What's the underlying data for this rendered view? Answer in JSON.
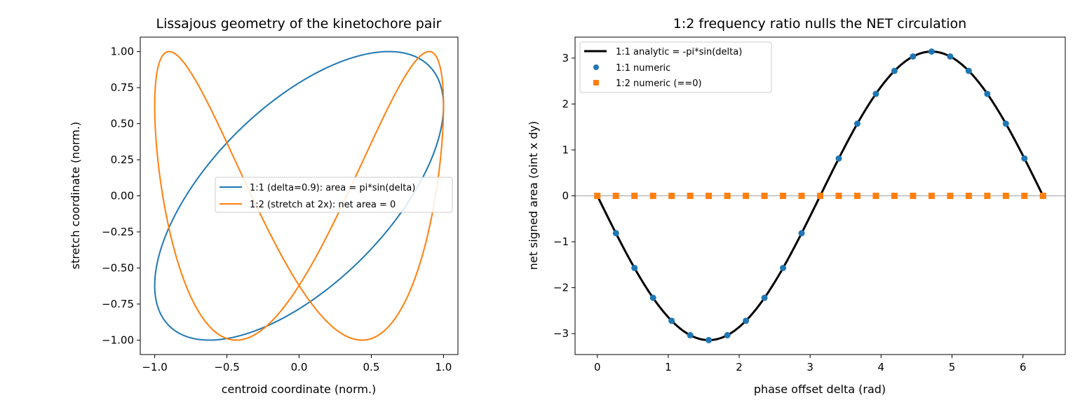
{
  "chart_data": [
    {
      "type": "line",
      "title": "Lissajous geometry of the kinetochore pair",
      "xlabel": "centroid coordinate (norm.)",
      "ylabel": "stretch coordinate (norm.)",
      "xlim": [
        -1.1,
        1.1
      ],
      "ylim": [
        -1.1,
        1.1
      ],
      "xticks": [
        -1.0,
        -0.5,
        0.0,
        0.5,
        1.0
      ],
      "xtick_labels": [
        "−1.0",
        "−0.5",
        "0.0",
        "0.5",
        "1.0"
      ],
      "yticks": [
        1.0,
        0.75,
        0.5,
        0.25,
        0.0,
        -0.25,
        -0.5,
        -0.75,
        -1.0
      ],
      "ytick_labels": [
        "1.00",
        "0.75",
        "0.50",
        "0.25",
        "0.00",
        "−0.25",
        "−0.50",
        "−0.75",
        "−1.00"
      ],
      "grid": false,
      "legend_position": "center-right",
      "series": [
        {
          "name": "1:1 (delta=0.9): area = pi*sin(delta)",
          "color": "#1f77b4",
          "x_expr": "cos(t)",
          "y_expr": "cos(t - 0.9)",
          "t_range": [
            0,
            6.2832
          ]
        },
        {
          "name": "1:2 (stretch at 2x): net area = 0",
          "color": "#ff7f0e",
          "x_expr": "cos(t)",
          "y_expr": "cos(2t - 0.9)",
          "t_range": [
            0,
            6.2832
          ]
        }
      ]
    },
    {
      "type": "line",
      "title": "1:2 frequency ratio nulls the NET circulation",
      "xlabel": "phase offset delta (rad)",
      "ylabel": "net signed area (oint x dy)",
      "xlim": [
        -0.314,
        6.597
      ],
      "ylim": [
        -3.456,
        3.456
      ],
      "xticks": [
        0,
        1,
        2,
        3,
        4,
        5,
        6
      ],
      "xtick_labels": [
        "0",
        "1",
        "2",
        "3",
        "4",
        "5",
        "6"
      ],
      "yticks": [
        3,
        2,
        1,
        0,
        -1,
        -2,
        -3
      ],
      "ytick_labels": [
        "3",
        "2",
        "1",
        "0",
        "−1",
        "−2",
        "−3"
      ],
      "grid": false,
      "reference_line_y": 0,
      "legend_position": "top-left",
      "x": [
        0.0,
        0.2618,
        0.5236,
        0.7854,
        1.0472,
        1.309,
        1.5708,
        1.8326,
        2.0944,
        2.3562,
        2.618,
        2.8798,
        3.1416,
        3.4034,
        3.6652,
        3.927,
        4.1888,
        4.4506,
        4.7124,
        4.9742,
        5.236,
        5.4978,
        5.7596,
        6.0214,
        6.2832
      ],
      "series": [
        {
          "name": "1:1 analytic = -pi*sin(delta)",
          "color": "#000000",
          "style": "line",
          "expr": "-pi*sin(delta)"
        },
        {
          "name": "1:1 numeric",
          "color": "#1f77b4",
          "style": "circle-markers",
          "values": [
            0.0,
            -0.813,
            -1.571,
            -2.221,
            -2.721,
            -3.035,
            -3.142,
            -3.035,
            -2.721,
            -2.221,
            -1.571,
            -0.813,
            0.0,
            0.813,
            1.571,
            2.221,
            2.721,
            3.035,
            3.142,
            3.035,
            2.721,
            2.221,
            1.571,
            0.813,
            0.0
          ]
        },
        {
          "name": "1:2 numeric (==0)",
          "color": "#ff7f0e",
          "style": "square-markers",
          "values": [
            0,
            0,
            0,
            0,
            0,
            0,
            0,
            0,
            0,
            0,
            0,
            0,
            0,
            0,
            0,
            0,
            0,
            0,
            0,
            0,
            0,
            0,
            0,
            0,
            0
          ]
        }
      ]
    }
  ]
}
